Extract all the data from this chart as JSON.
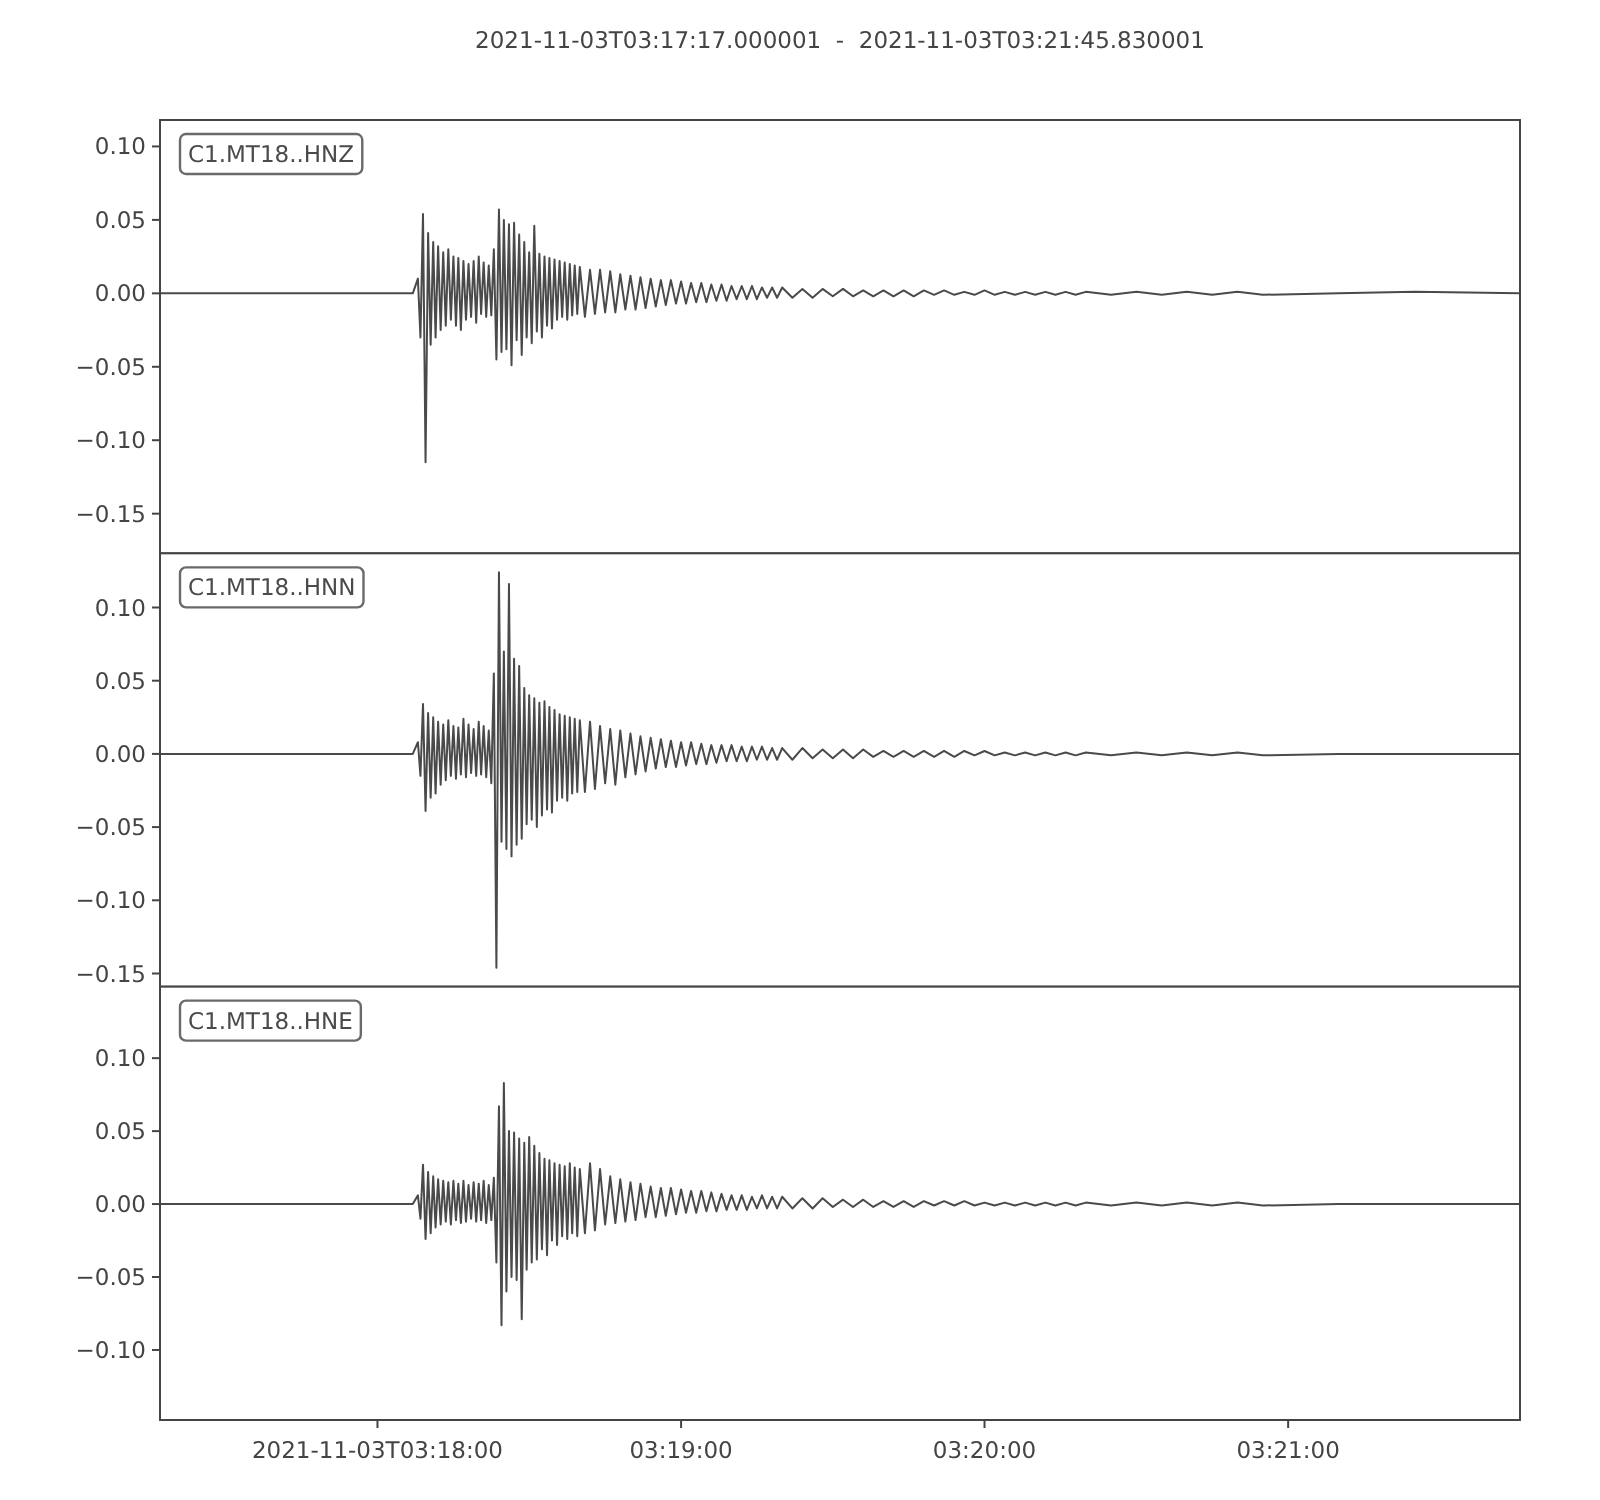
{
  "chart_data": [
    {
      "type": "line",
      "title": "2021-11-03T03:17:17.000001  -  2021-11-03T03:21:45.830001",
      "x": [
        3.28806,
        3.29167,
        3.29583,
        3.3,
        3.30194,
        3.30222,
        3.30236,
        3.3025,
        3.30264,
        3.30278,
        3.30292,
        3.30306,
        3.30319,
        3.30333,
        3.30347,
        3.30361,
        3.30375,
        3.30389,
        3.30403,
        3.30417,
        3.30431,
        3.30444,
        3.30458,
        3.30472,
        3.30486,
        3.305,
        3.30514,
        3.30528,
        3.30542,
        3.30556,
        3.30569,
        3.30583,
        3.30597,
        3.30611,
        3.30625,
        3.30639,
        3.30653,
        3.30667,
        3.30681,
        3.30694,
        3.30708,
        3.30722,
        3.30736,
        3.3075,
        3.30764,
        3.30778,
        3.30792,
        3.30806,
        3.30819,
        3.30833,
        3.30847,
        3.30861,
        3.30875,
        3.30889,
        3.30903,
        3.30917,
        3.30931,
        3.30944,
        3.30958,
        3.30972,
        3.30986,
        3.31,
        3.31014,
        3.31028,
        3.31042,
        3.31056,
        3.31069,
        3.31083,
        3.31097,
        3.31111,
        3.31139,
        3.31167,
        3.31194,
        3.31222,
        3.3125,
        3.31278,
        3.31306,
        3.31333,
        3.31361,
        3.31389,
        3.31417,
        3.31444,
        3.31472,
        3.315,
        3.31528,
        3.31556,
        3.31583,
        3.31611,
        3.31639,
        3.31667,
        3.31694,
        3.31722,
        3.3175,
        3.31778,
        3.31806,
        3.31833,
        3.31861,
        3.31889,
        3.31917,
        3.31944,
        3.31972,
        3.32,
        3.32028,
        3.32056,
        3.32083,
        3.32111,
        3.32139,
        3.32167,
        3.32194,
        3.32222,
        3.32278,
        3.32333,
        3.32389,
        3.32444,
        3.325,
        3.32556,
        3.32611,
        3.32667,
        3.32722,
        3.32778,
        3.32833,
        3.32889,
        3.32944,
        3.33,
        3.33056,
        3.33111,
        3.33167,
        3.33222,
        3.33278,
        3.33333,
        3.33389,
        3.33444,
        3.335,
        3.33556,
        3.33611,
        3.33667,
        3.33722,
        3.33778,
        3.33833,
        3.33889,
        3.34028,
        3.34167,
        3.34306,
        3.34444,
        3.34583,
        3.34722,
        3.34861,
        3.35278,
        3.35694,
        3.36273
      ],
      "series": [
        {
          "name": "C1.MT18..HNZ",
          "color": "#4a4a4a",
          "values": [
            0,
            0,
            0,
            0,
            0,
            0.01,
            -0.03,
            0.054,
            -0.115,
            0.041,
            -0.035,
            0.035,
            -0.03,
            0.032,
            -0.025,
            0.028,
            -0.022,
            0.03,
            -0.018,
            0.025,
            -0.022,
            0.024,
            -0.025,
            0.022,
            -0.018,
            0.02,
            -0.016,
            0.022,
            -0.02,
            0.025,
            -0.014,
            0.021,
            -0.016,
            0.019,
            -0.015,
            0.03,
            -0.045,
            0.057,
            -0.04,
            0.05,
            -0.038,
            0.047,
            -0.049,
            0.048,
            -0.032,
            0.04,
            -0.042,
            0.035,
            -0.03,
            0.028,
            -0.034,
            0.046,
            -0.026,
            0.027,
            -0.03,
            0.025,
            -0.022,
            0.024,
            -0.024,
            0.023,
            -0.018,
            0.022,
            -0.016,
            0.021,
            -0.018,
            0.02,
            -0.015,
            0.019,
            -0.014,
            0.018,
            -0.016,
            0.016,
            -0.014,
            0.016,
            -0.013,
            0.015,
            -0.013,
            0.013,
            -0.011,
            0.012,
            -0.011,
            0.011,
            -0.01,
            0.01,
            -0.009,
            0.009,
            -0.008,
            0.009,
            -0.007,
            0.008,
            -0.007,
            0.007,
            -0.006,
            0.007,
            -0.006,
            0.006,
            -0.005,
            0.006,
            -0.005,
            0.005,
            -0.004,
            0.005,
            -0.004,
            0.005,
            -0.004,
            0.004,
            -0.003,
            0.004,
            -0.003,
            0.004,
            -0.003,
            0.003,
            -0.003,
            0.003,
            -0.002,
            0.003,
            -0.002,
            0.002,
            -0.002,
            0.002,
            -0.002,
            0.002,
            -0.002,
            0.002,
            -0.001,
            0.002,
            -0.001,
            0.001,
            -0.001,
            0.002,
            -0.001,
            0.001,
            -0.001,
            0.001,
            -0.001,
            0.001,
            -0.001,
            0.001,
            -0.001,
            0.001,
            -0.001,
            0.001,
            -0.001,
            0.001,
            -0.001,
            0.001,
            -0.001,
            0,
            0.001,
            0
          ]
        }
      ],
      "xlim": [
        3.28806,
        3.36273
      ],
      "ylim": [
        -0.177,
        0.118
      ],
      "yticks": [
        {
          "value": -0.15,
          "label": "−0.15"
        },
        {
          "value": -0.1,
          "label": "−0.10"
        },
        {
          "value": -0.05,
          "label": "−0.05"
        },
        {
          "value": 0,
          "label": "0.00"
        },
        {
          "value": 0.05,
          "label": "0.05"
        },
        {
          "value": 0.1,
          "label": "0.10"
        }
      ],
      "tick_labels": "y"
    },
    {
      "type": "line",
      "x": [
        3.28806,
        3.29167,
        3.29583,
        3.3,
        3.30194,
        3.30222,
        3.30236,
        3.3025,
        3.30264,
        3.30278,
        3.30292,
        3.30306,
        3.30319,
        3.30333,
        3.30347,
        3.30361,
        3.30375,
        3.30389,
        3.30403,
        3.30417,
        3.30431,
        3.30444,
        3.30458,
        3.30472,
        3.30486,
        3.305,
        3.30514,
        3.30528,
        3.30542,
        3.30556,
        3.30569,
        3.30583,
        3.30597,
        3.30611,
        3.30625,
        3.30639,
        3.30653,
        3.30667,
        3.30681,
        3.30694,
        3.30708,
        3.30722,
        3.30736,
        3.3075,
        3.30764,
        3.30778,
        3.30792,
        3.30806,
        3.30819,
        3.30833,
        3.30847,
        3.30861,
        3.30875,
        3.30889,
        3.30903,
        3.30917,
        3.30931,
        3.30944,
        3.30958,
        3.30972,
        3.30986,
        3.31,
        3.31014,
        3.31028,
        3.31042,
        3.31056,
        3.31069,
        3.31083,
        3.31097,
        3.31111,
        3.31139,
        3.31167,
        3.31194,
        3.31222,
        3.3125,
        3.31278,
        3.31306,
        3.31333,
        3.31361,
        3.31389,
        3.31417,
        3.31444,
        3.31472,
        3.315,
        3.31528,
        3.31556,
        3.31583,
        3.31611,
        3.31639,
        3.31667,
        3.31694,
        3.31722,
        3.3175,
        3.31778,
        3.31806,
        3.31833,
        3.31861,
        3.31889,
        3.31917,
        3.31944,
        3.31972,
        3.32,
        3.32028,
        3.32056,
        3.32083,
        3.32111,
        3.32139,
        3.32167,
        3.32194,
        3.32222,
        3.32278,
        3.32333,
        3.32389,
        3.32444,
        3.325,
        3.32556,
        3.32611,
        3.32667,
        3.32722,
        3.32778,
        3.32833,
        3.32889,
        3.32944,
        3.33,
        3.33056,
        3.33111,
        3.33167,
        3.33222,
        3.33278,
        3.33333,
        3.33389,
        3.33444,
        3.335,
        3.33556,
        3.33611,
        3.33667,
        3.33722,
        3.33778,
        3.33833,
        3.33889,
        3.34028,
        3.34167,
        3.34306,
        3.34444,
        3.34583,
        3.34722,
        3.34861,
        3.35278,
        3.35694,
        3.36273
      ],
      "series": [
        {
          "name": "C1.MT18..HNN",
          "color": "#4a4a4a",
          "values": [
            0,
            0,
            0,
            0,
            0,
            0.008,
            -0.015,
            0.034,
            -0.039,
            0.028,
            -0.03,
            0.025,
            -0.027,
            0.022,
            -0.021,
            0.02,
            -0.018,
            0.023,
            -0.015,
            0.019,
            -0.017,
            0.018,
            -0.014,
            0.024,
            -0.016,
            0.02,
            -0.013,
            0.017,
            -0.015,
            0.022,
            -0.014,
            0.019,
            -0.016,
            0.016,
            -0.02,
            0.055,
            -0.146,
            0.124,
            -0.06,
            0.07,
            -0.065,
            0.116,
            -0.07,
            0.065,
            -0.062,
            0.06,
            -0.058,
            0.045,
            -0.048,
            0.04,
            -0.045,
            0.038,
            -0.05,
            0.035,
            -0.042,
            0.036,
            -0.038,
            0.032,
            -0.04,
            0.03,
            -0.032,
            0.027,
            -0.03,
            0.026,
            -0.032,
            0.025,
            -0.027,
            0.024,
            -0.026,
            0.023,
            -0.026,
            0.022,
            -0.024,
            0.019,
            -0.02,
            0.017,
            -0.021,
            0.016,
            -0.016,
            0.014,
            -0.014,
            0.012,
            -0.012,
            0.011,
            -0.01,
            0.01,
            -0.009,
            0.009,
            -0.009,
            0.008,
            -0.008,
            0.008,
            -0.007,
            0.007,
            -0.007,
            0.006,
            -0.006,
            0.006,
            -0.005,
            0.006,
            -0.005,
            0.005,
            -0.005,
            0.005,
            -0.004,
            0.005,
            -0.004,
            0.004,
            -0.004,
            0.004,
            -0.004,
            0.004,
            -0.003,
            0.003,
            -0.003,
            0.003,
            -0.003,
            0.003,
            -0.002,
            0.002,
            -0.002,
            0.002,
            -0.002,
            0.002,
            -0.002,
            0.002,
            -0.002,
            0.002,
            -0.001,
            0.002,
            -0.001,
            0.001,
            -0.001,
            0.001,
            -0.001,
            0.001,
            -0.001,
            0.001,
            -0.001,
            0.001,
            -0.001,
            0.001,
            -0.001,
            0.001,
            -0.001,
            0.001,
            -0.001,
            0,
            0,
            0
          ]
        }
      ],
      "xlim": [
        3.28806,
        3.36273
      ],
      "ylim": [
        -0.159,
        0.137
      ],
      "yticks": [
        {
          "value": -0.15,
          "label": "−0.15"
        },
        {
          "value": -0.1,
          "label": "−0.10"
        },
        {
          "value": -0.05,
          "label": "−0.05"
        },
        {
          "value": 0,
          "label": "0.00"
        },
        {
          "value": 0.05,
          "label": "0.05"
        },
        {
          "value": 0.1,
          "label": "0.10"
        }
      ],
      "tick_labels": "y"
    },
    {
      "type": "line",
      "x": [
        3.28806,
        3.29167,
        3.29583,
        3.3,
        3.30194,
        3.30222,
        3.30236,
        3.3025,
        3.30264,
        3.30278,
        3.30292,
        3.30306,
        3.30319,
        3.30333,
        3.30347,
        3.30361,
        3.30375,
        3.30389,
        3.30403,
        3.30417,
        3.30431,
        3.30444,
        3.30458,
        3.30472,
        3.30486,
        3.305,
        3.30514,
        3.30528,
        3.30542,
        3.30556,
        3.30569,
        3.30583,
        3.30597,
        3.30611,
        3.30625,
        3.30639,
        3.30653,
        3.30667,
        3.30681,
        3.30694,
        3.30708,
        3.30722,
        3.30736,
        3.3075,
        3.30764,
        3.30778,
        3.30792,
        3.30806,
        3.30819,
        3.30833,
        3.30847,
        3.30861,
        3.30875,
        3.30889,
        3.30903,
        3.30917,
        3.30931,
        3.30944,
        3.30958,
        3.30972,
        3.30986,
        3.31,
        3.31014,
        3.31028,
        3.31042,
        3.31056,
        3.31069,
        3.31083,
        3.31097,
        3.31111,
        3.31139,
        3.31167,
        3.31194,
        3.31222,
        3.3125,
        3.31278,
        3.31306,
        3.31333,
        3.31361,
        3.31389,
        3.31417,
        3.31444,
        3.31472,
        3.315,
        3.31528,
        3.31556,
        3.31583,
        3.31611,
        3.31639,
        3.31667,
        3.31694,
        3.31722,
        3.3175,
        3.31778,
        3.31806,
        3.31833,
        3.31861,
        3.31889,
        3.31917,
        3.31944,
        3.31972,
        3.32,
        3.32028,
        3.32056,
        3.32083,
        3.32111,
        3.32139,
        3.32167,
        3.32194,
        3.32222,
        3.32278,
        3.32333,
        3.32389,
        3.32444,
        3.325,
        3.32556,
        3.32611,
        3.32667,
        3.32722,
        3.32778,
        3.32833,
        3.32889,
        3.32944,
        3.33,
        3.33056,
        3.33111,
        3.33167,
        3.33222,
        3.33278,
        3.33333,
        3.33389,
        3.33444,
        3.335,
        3.33556,
        3.33611,
        3.33667,
        3.33722,
        3.33778,
        3.33833,
        3.33889,
        3.34028,
        3.34167,
        3.34306,
        3.34444,
        3.34583,
        3.34722,
        3.34861,
        3.35278,
        3.35694,
        3.36273
      ],
      "series": [
        {
          "name": "C1.MT18..HNE",
          "color": "#4a4a4a",
          "values": [
            0,
            0,
            0,
            0,
            0,
            0.006,
            -0.01,
            0.027,
            -0.024,
            0.022,
            -0.02,
            0.019,
            -0.016,
            0.017,
            -0.014,
            0.016,
            -0.012,
            0.015,
            -0.014,
            0.016,
            -0.011,
            0.014,
            -0.013,
            0.016,
            -0.012,
            0.013,
            -0.01,
            0.015,
            -0.012,
            0.014,
            -0.011,
            0.016,
            -0.013,
            0.013,
            -0.011,
            0.018,
            -0.04,
            0.067,
            -0.083,
            0.083,
            -0.06,
            0.05,
            -0.05,
            0.049,
            -0.052,
            0.045,
            -0.079,
            0.042,
            -0.045,
            0.046,
            -0.04,
            0.04,
            -0.038,
            0.035,
            -0.031,
            0.031,
            -0.035,
            0.03,
            -0.025,
            0.028,
            -0.028,
            0.027,
            -0.022,
            0.026,
            -0.024,
            0.028,
            -0.02,
            0.025,
            -0.022,
            0.024,
            -0.02,
            0.028,
            -0.018,
            0.024,
            -0.014,
            0.019,
            -0.013,
            0.017,
            -0.012,
            0.015,
            -0.011,
            0.014,
            -0.009,
            0.012,
            -0.009,
            0.011,
            -0.008,
            0.011,
            -0.007,
            0.01,
            -0.006,
            0.009,
            -0.006,
            0.009,
            -0.005,
            0.008,
            -0.005,
            0.007,
            -0.004,
            0.006,
            -0.004,
            0.006,
            -0.004,
            0.005,
            -0.003,
            0.006,
            -0.003,
            0.005,
            -0.003,
            0.005,
            -0.003,
            0.004,
            -0.003,
            0.004,
            -0.002,
            0.003,
            -0.002,
            0.003,
            -0.002,
            0.002,
            -0.002,
            0.002,
            -0.002,
            0.002,
            -0.001,
            0.002,
            -0.001,
            0.002,
            -0.001,
            0.001,
            -0.001,
            0.001,
            -0.001,
            0.001,
            -0.001,
            0.001,
            -0.001,
            0.001,
            -0.001,
            0.001,
            -0.001,
            0.001,
            -0.001,
            0.001,
            -0.001,
            0.001,
            -0.001,
            0,
            0,
            0
          ]
        }
      ],
      "xlim": [
        3.28806,
        3.36273
      ],
      "xticks": [
        {
          "value": 3.3,
          "label": "2021-11-03T03:18:00"
        },
        {
          "value": 3.31667,
          "label": "03:19:00"
        },
        {
          "value": 3.33333,
          "label": "03:20:00"
        },
        {
          "value": 3.35,
          "label": "03:21:00"
        }
      ],
      "ylim": [
        -0.148,
        0.149
      ],
      "yticks": [
        {
          "value": -0.1,
          "label": "−0.10"
        },
        {
          "value": -0.05,
          "label": "−0.05"
        },
        {
          "value": 0,
          "label": "0.00"
        },
        {
          "value": 0.05,
          "label": "0.05"
        },
        {
          "value": 0.1,
          "label": "0.10"
        }
      ]
    }
  ]
}
